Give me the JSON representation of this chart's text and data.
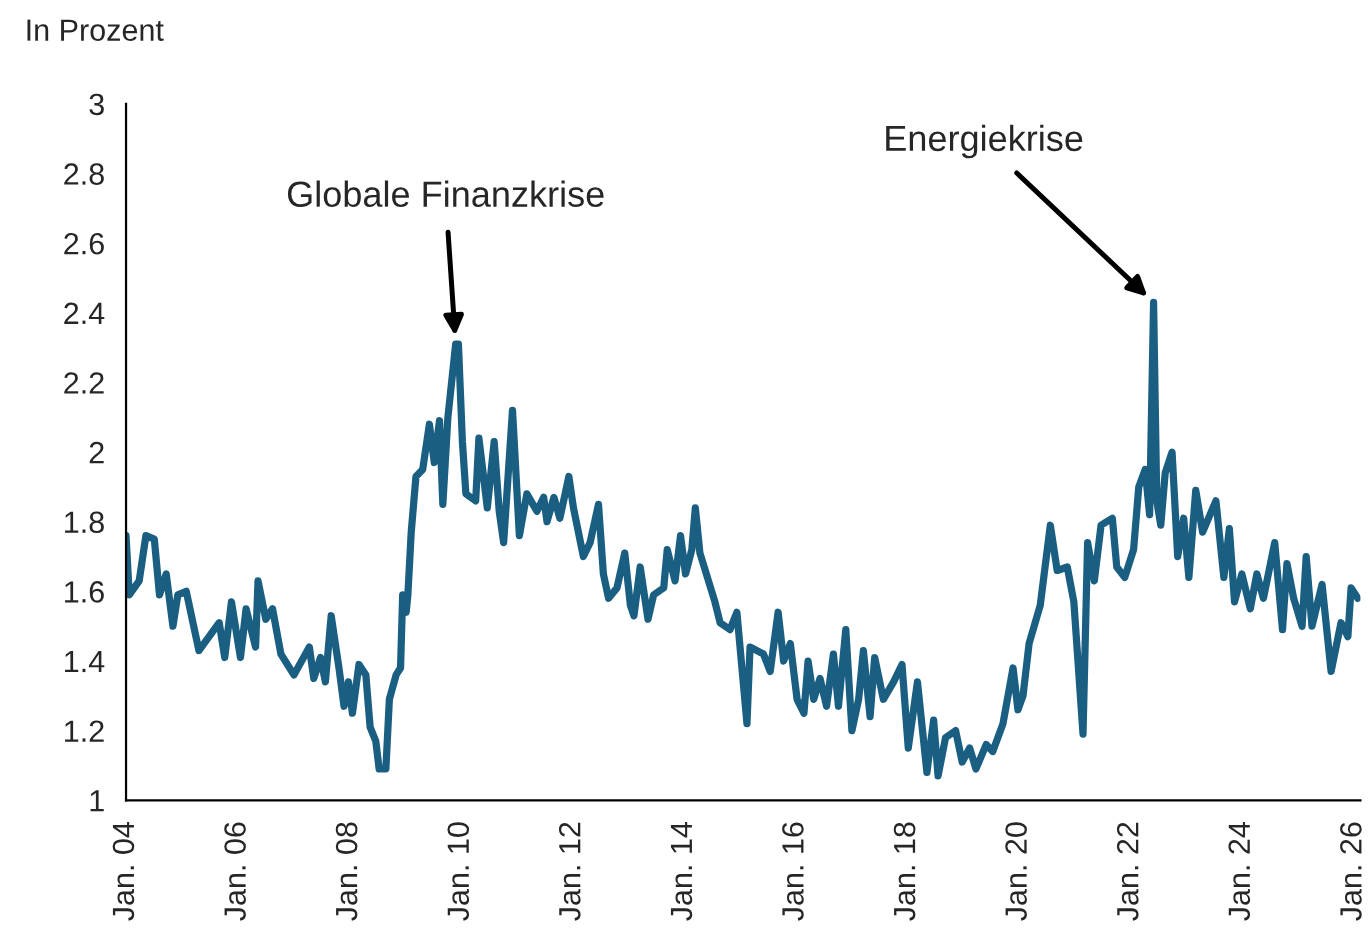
{
  "chart_data": {
    "type": "line",
    "ylabel": "In Prozent",
    "xlim": [
      "2004-01-01",
      "2026-02-15"
    ],
    "ylim": [
      1,
      3
    ],
    "xticks": [
      {
        "value": "2004-01",
        "label": "Jan. 04"
      },
      {
        "value": "2006-01",
        "label": "Jan. 06"
      },
      {
        "value": "2008-01",
        "label": "Jan. 08"
      },
      {
        "value": "2010-01",
        "label": "Jan. 10"
      },
      {
        "value": "2012-01",
        "label": "Jan. 12"
      },
      {
        "value": "2014-01",
        "label": "Jan. 14"
      },
      {
        "value": "2016-01",
        "label": "Jan. 16"
      },
      {
        "value": "2018-01",
        "label": "Jan. 18"
      },
      {
        "value": "2020-01",
        "label": "Jan. 20"
      },
      {
        "value": "2022-01",
        "label": "Jan. 22"
      },
      {
        "value": "2024-01",
        "label": "Jan. 24"
      },
      {
        "value": "2026-01",
        "label": "Jan. 26"
      }
    ],
    "yticks": [
      1,
      1.2,
      1.4,
      1.6,
      1.8,
      2,
      2.2,
      2.4,
      2.6,
      2.8,
      3
    ],
    "grid": false,
    "legend": false,
    "marker": "none",
    "line_style": "solid",
    "annotations": [
      {
        "text": "Globale Finanzkrise",
        "x": "2009-11-28",
        "y": 2.31
      },
      {
        "text": "Energiekrise",
        "x": "2022-06-02",
        "y": 2.43
      }
    ],
    "series": [
      {
        "color": "#1a5f82",
        "x": [
          "2004-01-01",
          "2004-01-22",
          "2004-03-27",
          "2004-05-10",
          "2004-07-04",
          "2004-08-07",
          "2004-09-20",
          "2004-11-03",
          "2004-12-05",
          "2005-01-29",
          "2005-04-22",
          "2005-09-02",
          "2005-10-08",
          "2005-11-21",
          "2006-01-19",
          "2006-02-25",
          "2006-04-28",
          "2006-05-14",
          "2006-07-04",
          "2006-08-17",
          "2006-10-11",
          "2007-01-04",
          "2007-04-15",
          "2007-05-14",
          "2007-06-27",
          "2007-07-29",
          "2007-09-05",
          "2007-10-26",
          "2007-11-28",
          "2007-12-27",
          "2008-01-22",
          "2008-03-05",
          "2008-04-19",
          "2008-05-17",
          "2008-06-23",
          "2008-07-15",
          "2008-08-28",
          "2008-09-20",
          "2008-11-03",
          "2008-12-02",
          "2008-12-16",
          "2009-01-08",
          "2009-01-19",
          "2009-02-10",
          "2009-03-13",
          "2009-04-26",
          "2009-06-09",
          "2009-07-11",
          "2009-08-14",
          "2009-09-05",
          "2009-10-08",
          "2009-11-28",
          "2009-12-16",
          "2010-01-11",
          "2010-02-03",
          "2010-04-08",
          "2010-04-29",
          "2010-06-23",
          "2010-08-07",
          "2010-09-09",
          "2010-10-08",
          "2010-12-05",
          "2011-01-19",
          "2011-03-09",
          "2011-05-14",
          "2011-06-27",
          "2011-07-19",
          "2011-09-02",
          "2011-10-11",
          "2011-12-09",
          "2012-01-08",
          "2012-03-13",
          "2012-04-26",
          "2012-06-20",
          "2012-07-22",
          "2012-08-25",
          "2012-10-19",
          "2012-12-09",
          "2013-01-15",
          "2013-02-07",
          "2013-03-20",
          "2013-05-10",
          "2013-06-16",
          "2013-08-21",
          "2013-09-13",
          "2013-11-03",
          "2013-12-09",
          "2014-01-11",
          "2014-02-21",
          "2014-03-16",
          "2014-04-15",
          "2014-07-22",
          "2014-08-25",
          "2014-10-29",
          "2014-12-13",
          "2015-02-17",
          "2015-03-09",
          "2015-06-05",
          "2015-07-19",
          "2015-09-09",
          "2015-10-15",
          "2015-11-28",
          "2016-01-11",
          "2016-02-25",
          "2016-03-23",
          "2016-04-29",
          "2016-06-09",
          "2016-07-22",
          "2016-09-05",
          "2016-10-08",
          "2016-11-25",
          "2017-01-04",
          "2017-02-17",
          "2017-03-20",
          "2017-05-03",
          "2017-06-02",
          "2017-07-29",
          "2017-10-04",
          "2017-11-28",
          "2018-01-08",
          "2018-03-09",
          "2018-05-10",
          "2018-06-23",
          "2018-07-22",
          "2018-09-09",
          "2018-11-14",
          "2018-12-27",
          "2019-02-14",
          "2019-03-27",
          "2019-06-02",
          "2019-07-15",
          "2019-09-20",
          "2019-11-25",
          "2019-12-27",
          "2020-01-29",
          "2020-03-09",
          "2020-05-21",
          "2020-07-26",
          "2020-09-09",
          "2020-11-14",
          "2020-12-27",
          "2021-02-25",
          "2021-03-27",
          "2021-05-10",
          "2021-06-23",
          "2021-07-29",
          "2021-09-05",
          "2021-10-04",
          "2021-11-25",
          "2022-01-22",
          "2022-02-25",
          "2022-04-08",
          "2022-05-07",
          "2022-06-02",
          "2022-06-23",
          "2022-07-19",
          "2022-08-17",
          "2022-10-01",
          "2022-11-07",
          "2022-12-16",
          "2023-01-19",
          "2023-03-05",
          "2023-04-19",
          "2023-07-15",
          "2023-09-05",
          "2023-10-11",
          "2023-11-14",
          "2024-01-01",
          "2024-02-25",
          "2024-04-08",
          "2024-05-21",
          "2024-08-03",
          "2024-09-23",
          "2024-10-22",
          "2024-12-05",
          "2025-01-29",
          "2025-02-25",
          "2025-04-04",
          "2025-06-09",
          "2025-08-07",
          "2025-10-11",
          "2025-11-25",
          "2025-12-16",
          "2026-01-29"
        ],
        "values": [
          1.76,
          1.59,
          1.63,
          1.76,
          1.75,
          1.59,
          1.65,
          1.5,
          1.59,
          1.6,
          1.43,
          1.51,
          1.41,
          1.57,
          1.41,
          1.55,
          1.44,
          1.63,
          1.52,
          1.55,
          1.42,
          1.36,
          1.44,
          1.35,
          1.41,
          1.34,
          1.53,
          1.38,
          1.27,
          1.34,
          1.25,
          1.39,
          1.36,
          1.21,
          1.17,
          1.09,
          1.09,
          1.29,
          1.36,
          1.38,
          1.59,
          1.54,
          1.59,
          1.77,
          1.93,
          1.95,
          2.08,
          1.97,
          2.09,
          1.85,
          2.1,
          2.31,
          2.31,
          2.03,
          1.88,
          1.86,
          2.04,
          1.84,
          2.03,
          1.83,
          1.74,
          2.12,
          1.76,
          1.88,
          1.83,
          1.87,
          1.8,
          1.87,
          1.81,
          1.93,
          1.84,
          1.7,
          1.74,
          1.85,
          1.65,
          1.58,
          1.61,
          1.71,
          1.56,
          1.53,
          1.67,
          1.52,
          1.59,
          1.61,
          1.72,
          1.63,
          1.76,
          1.65,
          1.72,
          1.84,
          1.71,
          1.57,
          1.51,
          1.49,
          1.54,
          1.22,
          1.44,
          1.42,
          1.37,
          1.54,
          1.4,
          1.45,
          1.29,
          1.25,
          1.4,
          1.29,
          1.35,
          1.27,
          1.42,
          1.27,
          1.49,
          1.2,
          1.29,
          1.43,
          1.24,
          1.41,
          1.29,
          1.34,
          1.39,
          1.15,
          1.34,
          1.08,
          1.23,
          1.07,
          1.18,
          1.2,
          1.11,
          1.15,
          1.09,
          1.16,
          1.14,
          1.22,
          1.38,
          1.26,
          1.3,
          1.45,
          1.56,
          1.79,
          1.66,
          1.67,
          1.57,
          1.19,
          1.74,
          1.63,
          1.79,
          1.8,
          1.81,
          1.67,
          1.64,
          1.72,
          1.9,
          1.95,
          1.82,
          2.43,
          1.86,
          1.79,
          1.94,
          2.0,
          1.7,
          1.81,
          1.64,
          1.89,
          1.77,
          1.86,
          1.64,
          1.78,
          1.57,
          1.65,
          1.55,
          1.65,
          1.58,
          1.74,
          1.49,
          1.68,
          1.58,
          1.5,
          1.7,
          1.5,
          1.62,
          1.37,
          1.51,
          1.47,
          1.61,
          1.58
        ]
      }
    ]
  }
}
